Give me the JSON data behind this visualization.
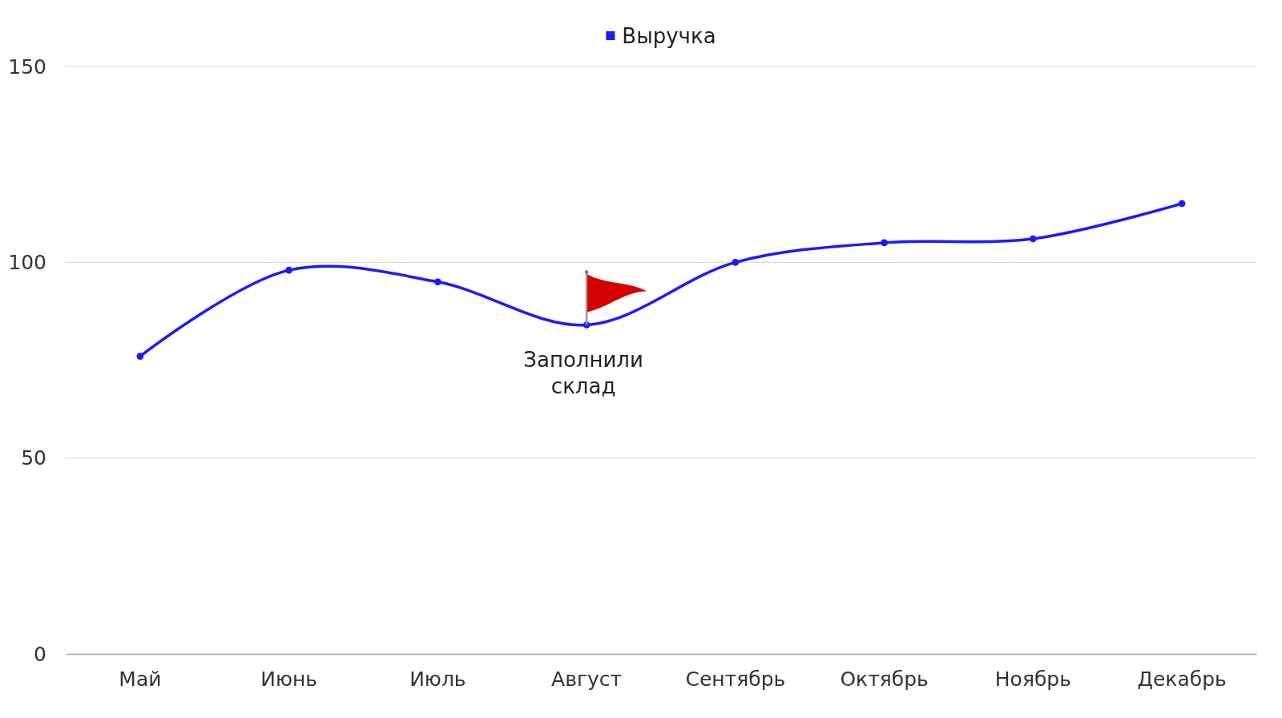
{
  "chart_data": {
    "type": "line",
    "categories": [
      "Май",
      "Июнь",
      "Июль",
      "Август",
      "Сентябрь",
      "Октябрь",
      "Ноябрь",
      "Декабрь"
    ],
    "series": [
      {
        "name": "Выручка",
        "color": "#1a1aff",
        "values": [
          76,
          98,
          95,
          84,
          100,
          105,
          106,
          115
        ]
      }
    ],
    "ylim": [
      0,
      150
    ],
    "yticks": [
      0,
      50,
      100,
      150
    ],
    "grid": "y",
    "legend": "top",
    "marker": "circle",
    "line_style": "solid",
    "annotations": [
      {
        "text": "Заполнили склад",
        "x": "Август",
        "y": 84
      }
    ]
  }
}
